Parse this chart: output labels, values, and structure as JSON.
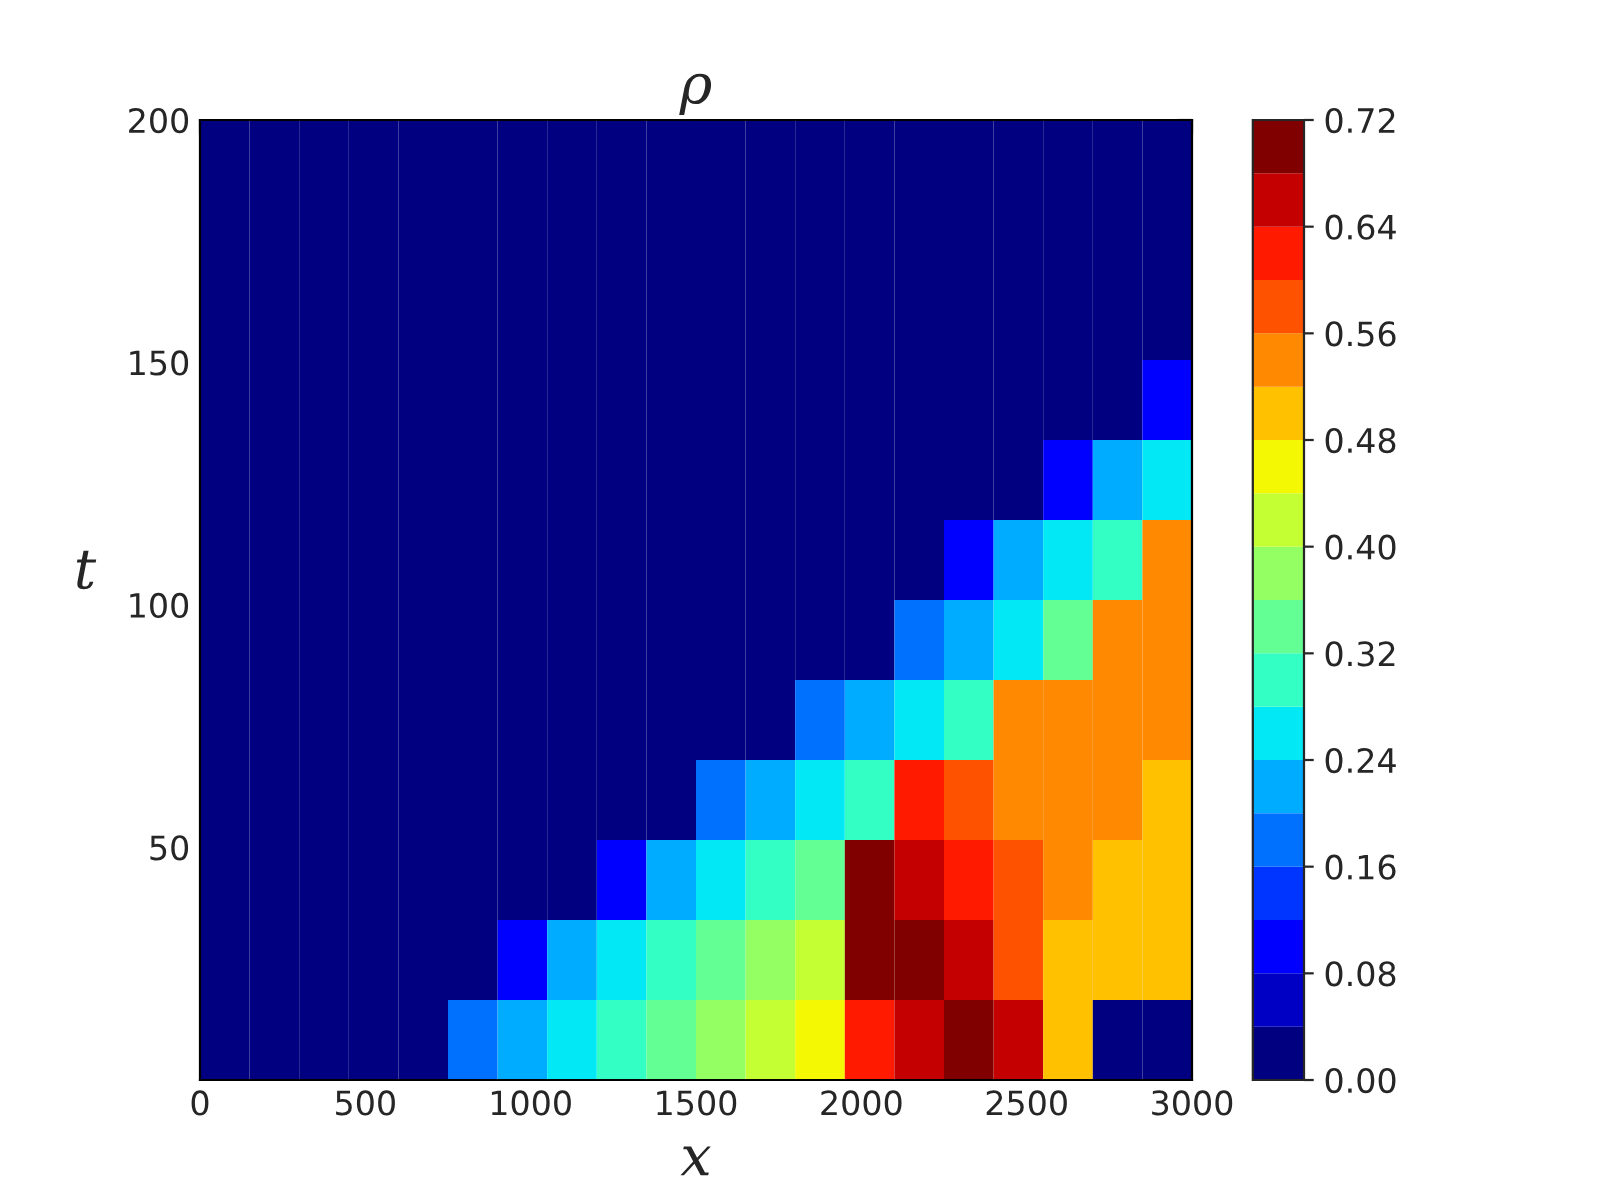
{
  "chart_data": {
    "type": "heatmap",
    "title": "ρ",
    "xlabel": "x",
    "ylabel": "t",
    "cells": [
      [
        0.02,
        0.02,
        0.02,
        0.02,
        0.02,
        0.02,
        0.02,
        0.02,
        0.02,
        0.02,
        0.02,
        0.02,
        0.02,
        0.02,
        0.02,
        0.02,
        0.02,
        0.02,
        0.02,
        0.02
      ],
      [
        0.02,
        0.02,
        0.02,
        0.02,
        0.02,
        0.02,
        0.02,
        0.02,
        0.02,
        0.02,
        0.02,
        0.02,
        0.02,
        0.02,
        0.02,
        0.02,
        0.02,
        0.02,
        0.02,
        0.02
      ],
      [
        0.02,
        0.02,
        0.02,
        0.02,
        0.02,
        0.02,
        0.02,
        0.02,
        0.02,
        0.02,
        0.02,
        0.02,
        0.02,
        0.02,
        0.02,
        0.02,
        0.02,
        0.02,
        0.02,
        0.02
      ],
      [
        0.02,
        0.02,
        0.02,
        0.02,
        0.02,
        0.02,
        0.02,
        0.02,
        0.02,
        0.02,
        0.02,
        0.02,
        0.02,
        0.02,
        0.02,
        0.02,
        0.02,
        0.02,
        0.02,
        0.1
      ],
      [
        0.02,
        0.02,
        0.02,
        0.02,
        0.02,
        0.02,
        0.02,
        0.02,
        0.02,
        0.02,
        0.02,
        0.02,
        0.02,
        0.02,
        0.02,
        0.02,
        0.02,
        0.1,
        0.22,
        0.26
      ],
      [
        0.02,
        0.02,
        0.02,
        0.02,
        0.02,
        0.02,
        0.02,
        0.02,
        0.02,
        0.02,
        0.02,
        0.02,
        0.02,
        0.02,
        0.02,
        0.1,
        0.22,
        0.26,
        0.3,
        0.54
      ],
      [
        0.02,
        0.02,
        0.02,
        0.02,
        0.02,
        0.02,
        0.02,
        0.02,
        0.02,
        0.02,
        0.02,
        0.02,
        0.02,
        0.02,
        0.18,
        0.22,
        0.26,
        0.34,
        0.54,
        0.54
      ],
      [
        0.02,
        0.02,
        0.02,
        0.02,
        0.02,
        0.02,
        0.02,
        0.02,
        0.02,
        0.02,
        0.02,
        0.02,
        0.18,
        0.22,
        0.26,
        0.3,
        0.54,
        0.54,
        0.54,
        0.54
      ],
      [
        0.02,
        0.02,
        0.02,
        0.02,
        0.02,
        0.02,
        0.02,
        0.02,
        0.02,
        0.02,
        0.18,
        0.22,
        0.26,
        0.3,
        0.62,
        0.58,
        0.54,
        0.54,
        0.54,
        0.5
      ],
      [
        0.02,
        0.02,
        0.02,
        0.02,
        0.02,
        0.02,
        0.02,
        0.02,
        0.1,
        0.22,
        0.26,
        0.3,
        0.34,
        0.7,
        0.66,
        0.62,
        0.58,
        0.54,
        0.5,
        0.5
      ],
      [
        0.02,
        0.02,
        0.02,
        0.02,
        0.02,
        0.02,
        0.1,
        0.22,
        0.26,
        0.3,
        0.34,
        0.38,
        0.42,
        0.7,
        0.7,
        0.66,
        0.58,
        0.5,
        0.5,
        0.5
      ],
      [
        0.02,
        0.02,
        0.02,
        0.02,
        0.02,
        0.18,
        0.22,
        0.26,
        0.3,
        0.34,
        0.38,
        0.42,
        0.46,
        0.62,
        0.66,
        0.7,
        0.66,
        0.5,
        0.02,
        0.02
      ]
    ],
    "xlim": [
      0,
      3000
    ],
    "ylim": [
      2,
      200
    ],
    "xticks": [
      0,
      500,
      1000,
      1500,
      2000,
      2500,
      3000
    ],
    "yticks": [
      50,
      100,
      150,
      200
    ],
    "clim": [
      0,
      0.72
    ],
    "cticks": [
      {
        "value": 0,
        "label": "0.00"
      },
      {
        "value": 0.08,
        "label": "0.08"
      },
      {
        "value": 0.16,
        "label": "0.16"
      },
      {
        "value": 0.24,
        "label": "0.24"
      },
      {
        "value": 0.32,
        "label": "0.32"
      },
      {
        "value": 0.4,
        "label": "0.40"
      },
      {
        "value": 0.48,
        "label": "0.48"
      },
      {
        "value": 0.56,
        "label": "0.56"
      },
      {
        "value": 0.64,
        "label": "0.64"
      },
      {
        "value": 0.72,
        "label": "0.72"
      }
    ]
  }
}
